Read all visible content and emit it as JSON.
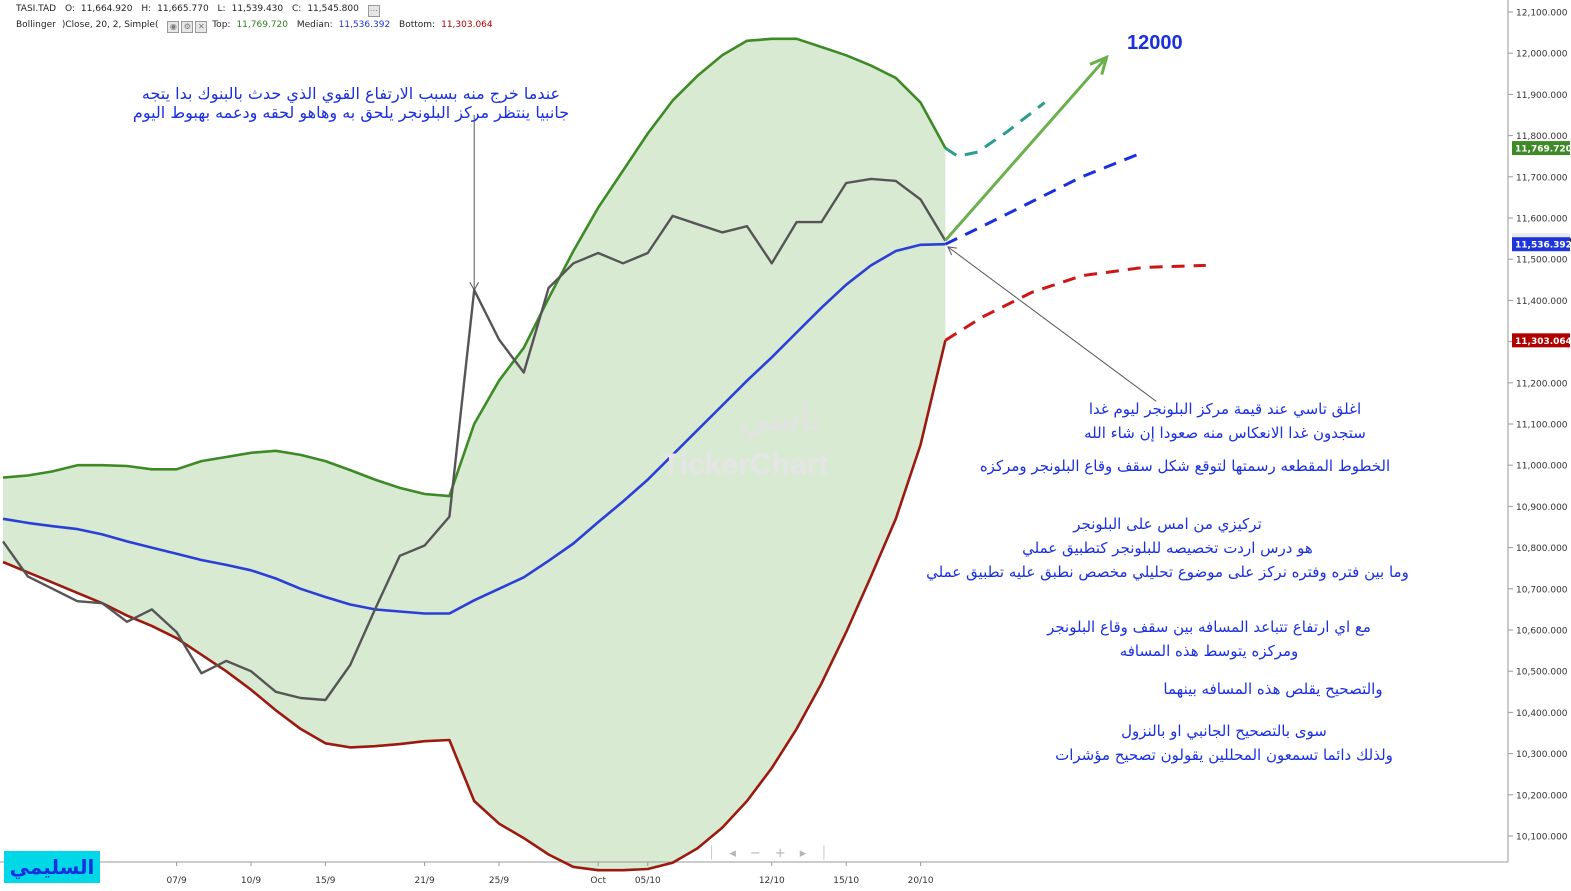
{
  "header": {
    "symbol": "TASI.TAD",
    "open_label": "O:",
    "open": "11,664.920",
    "high_label": "H:",
    "high": "11,665.770",
    "low_label": "L:",
    "low": "11,539.430",
    "close_label": "C:",
    "close": "11,545.800",
    "indicator_name": "Bollinger",
    "indicator_params": ")Close, 20, 2, Simple(",
    "top_label": "Top:",
    "top": "11,769.720",
    "median_label": "Median:",
    "median": "11,536.392",
    "bottom_label": "Bottom:",
    "bottom": "11,303.064"
  },
  "watermark": {
    "arabic": "تاسي",
    "latin": "TickerChart"
  },
  "signature": "السليمي",
  "target_label": "12000",
  "notes": {
    "n1_line1": "عندما خرج منه بسبب الارتفاع القوي الذي حدث بالبنوك بدا يتجه",
    "n1_line2": "جانبيا ينتظر مركز البلونجر يلحق به وهاهو لحقه ودعمه بهبوط اليوم",
    "n2_line1": "اغلق تاسي عند قيمة مركز البلونجر ليوم غدا",
    "n2_line2": "ستجدون غدا الانعكاس منه صعودا إن شاء الله",
    "n3": "الخطوط المقطعه رسمتها لتوقع شكل سقف وقاع البلونجر ومركزه",
    "n4_line1": "تركيزي من امس على البلونجر",
    "n4_line2": "هو درس اردت تخصيصه للبلونجر كتطبيق عملي",
    "n4_line3": "وما بين فتره وفتره نركز على موضوع تحليلي مخصص نطبق عليه تطبيق عملي",
    "n5_line1": "مع اي ارتفاع تتباعد المسافه بين سقف وقاع البلونجر",
    "n5_line2": "ومركزه يتوسط هذه المسافه",
    "n6": "والتصحيح يقلص هذه المسافه بينهما",
    "n7_line1": "سوى بالتصحيح الجانبي او بالنزول",
    "n7_line2": "ولذلك دائما تسمعون المحللين  يقولون تصحيح مؤشرات"
  },
  "colors": {
    "price": "#555555",
    "upper": "#3d8a26",
    "median": "#2b3fd6",
    "lower": "#9b1a10",
    "fill": "#d9ead3",
    "forecast_upper": "#2a9d8f",
    "forecast_median": "#1a2fe0",
    "forecast_lower": "#d01515",
    "arrow": "#6ab04c"
  },
  "chart_data": {
    "type": "line",
    "ylim": [
      10050,
      12150
    ],
    "x_count": 39,
    "y_ticks": [
      10100,
      10200,
      10300,
      10400,
      10500,
      10600,
      10700,
      10800,
      10900,
      11000,
      11100,
      11200,
      11300,
      11400,
      11500,
      11600,
      11700,
      11800,
      11900,
      12000,
      12100
    ],
    "y_tick_labels": [
      "10,100.000",
      "10,200.000",
      "10,300.000",
      "10,400.000",
      "10,500.000",
      "10,600.000",
      "10,700.000",
      "10,800.000",
      "10,900.000",
      "11,000.000",
      "11,100.000",
      "11,200.000",
      "11,300.000",
      "11,400.000",
      "11,500.000",
      "11,600.000",
      "11,700.000",
      "11,800.000",
      "11,900.000",
      "12,000.000",
      "12,100.000"
    ],
    "x_ticks": [
      {
        "i": 7,
        "label": "07/9"
      },
      {
        "i": 10,
        "label": "10/9"
      },
      {
        "i": 13,
        "label": "15/9"
      },
      {
        "i": 17,
        "label": "21/9"
      },
      {
        "i": 20,
        "label": "25/9"
      },
      {
        "i": 24,
        "label": "Oct"
      },
      {
        "i": 26,
        "label": "05/10"
      },
      {
        "i": 31,
        "label": "12/10"
      },
      {
        "i": 34,
        "label": "15/10"
      },
      {
        "i": 37,
        "label": "20/10"
      }
    ],
    "series": [
      {
        "key": "close",
        "values": [
          10815,
          10730,
          10700,
          10670,
          10665,
          10620,
          10650,
          10595,
          10495,
          10525,
          10500,
          10450,
          10435,
          10430,
          10515,
          10650,
          10780,
          10805,
          10875,
          11425,
          11305,
          11225,
          11430,
          11490,
          11515,
          11490,
          11515,
          11605,
          11585,
          11565,
          11580,
          11490,
          11590,
          11590,
          11685,
          11695,
          11690,
          11645,
          11545
        ]
      },
      {
        "key": "upper",
        "values": [
          10970,
          10975,
          10985,
          11000,
          11000,
          10998,
          10990,
          10990,
          11010,
          11020,
          11030,
          11035,
          11025,
          11010,
          10988,
          10965,
          10945,
          10930,
          10925,
          11100,
          11205,
          11285,
          11405,
          11520,
          11625,
          11715,
          11805,
          11885,
          11945,
          11995,
          12030,
          12035,
          12035,
          12015,
          11995,
          11970,
          11940,
          11880,
          11769.72
        ]
      },
      {
        "key": "median",
        "values": [
          10870,
          10860,
          10852,
          10845,
          10832,
          10815,
          10800,
          10785,
          10770,
          10758,
          10745,
          10725,
          10700,
          10680,
          10662,
          10650,
          10645,
          10640,
          10640,
          10672,
          10700,
          10728,
          10768,
          10810,
          10862,
          10912,
          10965,
          11025,
          11085,
          11145,
          11205,
          11262,
          11322,
          11382,
          11438,
          11485,
          11520,
          11535,
          11536.39
        ]
      },
      {
        "key": "lower",
        "values": [
          10765,
          10740,
          10715,
          10690,
          10665,
          10635,
          10610,
          10580,
          10540,
          10500,
          10455,
          10405,
          10360,
          10325,
          10315,
          10318,
          10323,
          10330,
          10333,
          10185,
          10130,
          10095,
          10055,
          10025,
          10017,
          10017,
          10020,
          10035,
          10070,
          10120,
          10185,
          10265,
          10360,
          10470,
          10595,
          10730,
          10870,
          11050,
          11303.06
        ]
      }
    ],
    "forecast": {
      "upper": {
        "x": [
          38,
          38.5,
          39.3,
          40.5,
          42.0
        ],
        "y": [
          11769.72,
          11750,
          11760,
          11810,
          11880
        ]
      },
      "median": {
        "x": [
          38,
          39.5,
          41.5,
          43.5,
          46.0
        ],
        "y": [
          11536.39,
          11580,
          11640,
          11700,
          11760
        ]
      },
      "lower": {
        "x": [
          38,
          39.5,
          41.5,
          43.5,
          46.0,
          48.5
        ],
        "y": [
          11303.06,
          11360,
          11420,
          11460,
          11480,
          11485
        ]
      },
      "target_arrow": {
        "x": [
          38,
          44.5
        ],
        "y": [
          11545.8,
          11990
        ]
      }
    },
    "price_tags": [
      {
        "value": 11769.72,
        "label": "11,769.720",
        "color": "#3d8a26"
      },
      {
        "value": 11545.8,
        "label": "11,545.800",
        "color": "#eaeaea",
        "text_color": "#222222"
      },
      {
        "value": 11536.392,
        "label": "11,536.392",
        "color": "#1d35d9"
      },
      {
        "value": 11303.064,
        "label": "11,303.064",
        "color": "#b00000"
      }
    ],
    "pointers": [
      {
        "from": {
          "x": 19,
          "y": 11850
        },
        "to": {
          "x": 19,
          "y": 11425
        }
      },
      {
        "from": {
          "x": 46.5,
          "y": 11155
        },
        "to": {
          "x": 38.1,
          "y": 11530
        }
      }
    ]
  }
}
